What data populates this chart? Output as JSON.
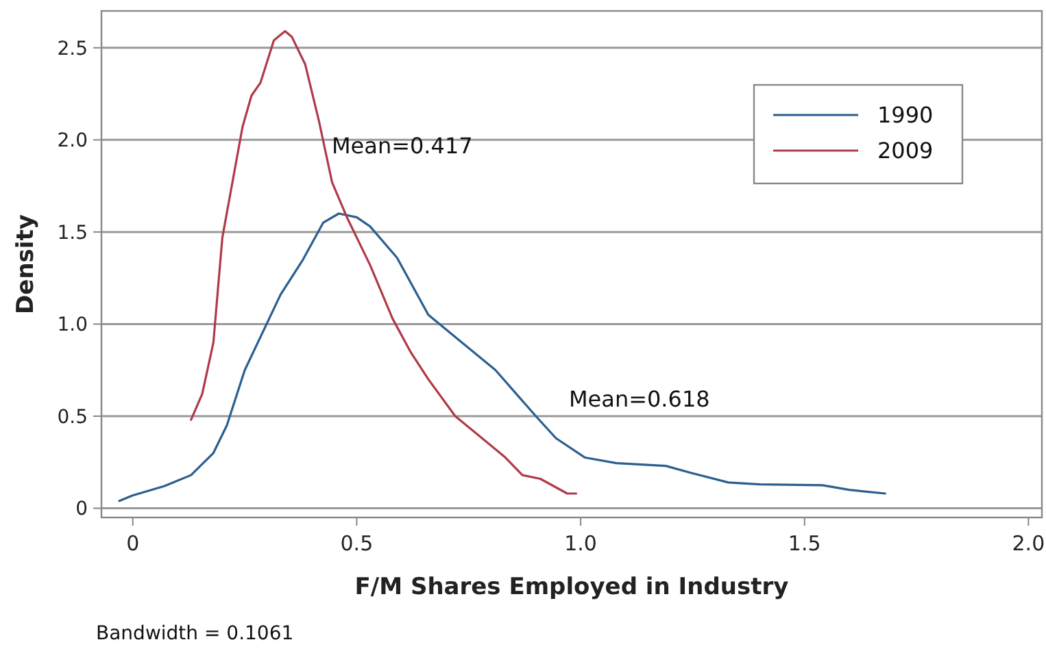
{
  "chart_data": {
    "type": "line",
    "xlabel": "F/M Shares Employed in Industry",
    "ylabel": "Density",
    "xlim": [
      -0.07,
      2.03
    ],
    "ylim": [
      -0.05,
      2.7
    ],
    "xticks": [
      {
        "value": 0,
        "label": "0"
      },
      0.5,
      {
        "value": 1,
        "label": "1.0"
      },
      1.5,
      {
        "value": 2,
        "label": "2.0"
      }
    ],
    "yticks": [
      {
        "value": 0,
        "label": "0"
      },
      0.5,
      {
        "value": 1,
        "label": "1.0"
      },
      1.5,
      {
        "value": 2,
        "label": "2.0"
      },
      2.5
    ],
    "grid": "y",
    "legend": "top right",
    "marker": "none",
    "line_style": "solid",
    "series": [
      {
        "name": "1990",
        "color": "#2a5f8f",
        "x": [
          -0.03,
          0,
          0.07,
          0.13,
          0.18,
          0.21,
          0.25,
          0.33,
          0.38,
          0.425,
          0.46,
          0.5,
          0.53,
          0.59,
          0.66,
          0.73,
          0.81,
          0.9,
          0.945,
          1.01,
          1.08,
          1.19,
          1.25,
          1.33,
          1.4,
          1.54,
          1.6,
          1.68
        ],
        "values": [
          0.04,
          0.07,
          0.12,
          0.18,
          0.3,
          0.45,
          0.75,
          1.16,
          1.35,
          1.55,
          1.6,
          1.58,
          1.53,
          1.36,
          1.05,
          0.91,
          0.75,
          0.5,
          0.38,
          0.275,
          0.245,
          0.23,
          0.19,
          0.14,
          0.13,
          0.125,
          0.1,
          0.08
        ]
      },
      {
        "name": "2009",
        "color": "#b03a48",
        "x": [
          0.13,
          0.155,
          0.18,
          0.2,
          0.245,
          0.265,
          0.285,
          0.315,
          0.34,
          0.355,
          0.385,
          0.415,
          0.445,
          0.48,
          0.53,
          0.58,
          0.62,
          0.66,
          0.72,
          0.78,
          0.83,
          0.87,
          0.91,
          0.97,
          0.99
        ],
        "values": [
          0.48,
          0.62,
          0.9,
          1.47,
          2.07,
          2.24,
          2.31,
          2.54,
          2.59,
          2.56,
          2.41,
          2.11,
          1.77,
          1.57,
          1.32,
          1.03,
          0.85,
          0.7,
          0.5,
          0.38,
          0.28,
          0.18,
          0.16,
          0.08,
          0.08
        ]
      }
    ],
    "annotations": [
      "Mean=0.417",
      "Mean=0.618",
      "Bandwidth = 0.1061"
    ]
  }
}
